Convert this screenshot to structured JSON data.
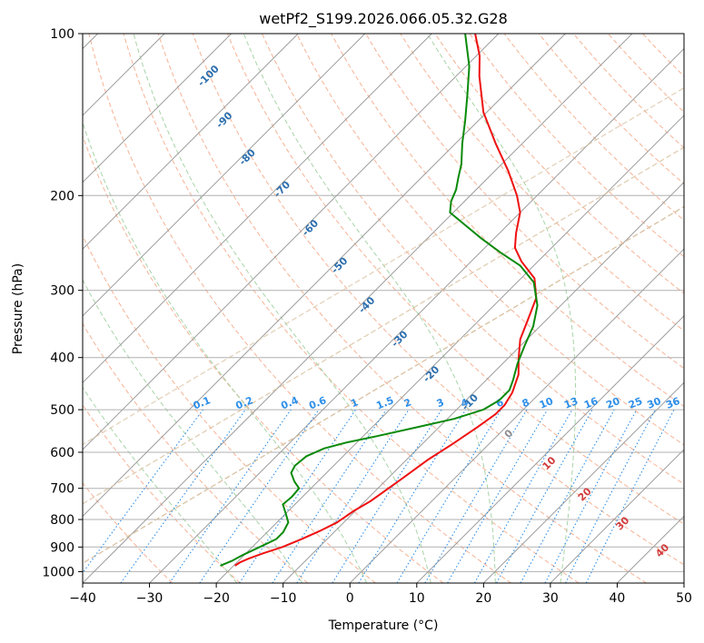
{
  "chart_data": {
    "type": "line",
    "title": "wetPf2_S199.2026.066.05.32.G28",
    "xlabel": "Temperature (°C)",
    "ylabel": "Pressure (hPa)",
    "xlim": [
      -40,
      50
    ],
    "ylim": [
      1050,
      100
    ],
    "x_ticks": [
      -40,
      -30,
      -20,
      -10,
      0,
      10,
      20,
      30,
      40,
      50
    ],
    "x_tick_labels": [
      "−40",
      "−30",
      "−20",
      "−10",
      "0",
      "10",
      "20",
      "30",
      "40",
      "50"
    ],
    "y_ticks": [
      100,
      200,
      300,
      400,
      500,
      600,
      700,
      800,
      900,
      1000
    ],
    "y_tick_labels": [
      "100",
      "200",
      "300",
      "400",
      "500",
      "600",
      "700",
      "800",
      "900",
      "1000"
    ],
    "skew_note": "skew-T log-p diagram",
    "colors": {
      "temperature": "#ee1111",
      "dewpoint": "#0a8a0a",
      "dry_adiabat": "#f4a582",
      "moist_adiabat": "#9fcf9f",
      "mixing_ratio": "#2e8fe8",
      "isotherm": "#8c8c8c",
      "theta_label": "#2c6fae",
      "hot_label": "#d23c3c",
      "cloud_curve": "#d9c0a0"
    },
    "series": [
      {
        "name": "temperature",
        "points": [
          {
            "p": 975,
            "t": -19.8
          },
          {
            "p": 960,
            "t": -19.5
          },
          {
            "p": 945,
            "t": -18.8
          },
          {
            "p": 925,
            "t": -17.5
          },
          {
            "p": 900,
            "t": -15.5
          },
          {
            "p": 870,
            "t": -13.8
          },
          {
            "p": 840,
            "t": -12.3
          },
          {
            "p": 810,
            "t": -11.0
          },
          {
            "p": 770,
            "t": -10.2
          },
          {
            "p": 740,
            "t": -9.2
          },
          {
            "p": 710,
            "t": -8.6
          },
          {
            "p": 670,
            "t": -7.8
          },
          {
            "p": 620,
            "t": -6.8
          },
          {
            "p": 580,
            "t": -5.5
          },
          {
            "p": 540,
            "t": -4.3
          },
          {
            "p": 510,
            "t": -3.5
          },
          {
            "p": 490,
            "t": -3.5
          },
          {
            "p": 465,
            "t": -4.2
          },
          {
            "p": 430,
            "t": -6.0
          },
          {
            "p": 400,
            "t": -8.5
          },
          {
            "p": 370,
            "t": -11.0
          },
          {
            "p": 340,
            "t": -12.8
          },
          {
            "p": 310,
            "t": -14.8
          },
          {
            "p": 285,
            "t": -18.0
          },
          {
            "p": 265,
            "t": -22.5
          },
          {
            "p": 250,
            "t": -25.5
          },
          {
            "p": 235,
            "t": -27.5
          },
          {
            "p": 215,
            "t": -30.0
          },
          {
            "p": 200,
            "t": -33.0
          },
          {
            "p": 180,
            "t": -38.0
          },
          {
            "p": 160,
            "t": -44.0
          },
          {
            "p": 140,
            "t": -50.5
          },
          {
            "p": 120,
            "t": -56.5
          },
          {
            "p": 110,
            "t": -59.5
          },
          {
            "p": 100,
            "t": -63.5
          }
        ]
      },
      {
        "name": "dewpoint",
        "points": [
          {
            "p": 975,
            "t": -22.0
          },
          {
            "p": 955,
            "t": -21.0
          },
          {
            "p": 930,
            "t": -20.2
          },
          {
            "p": 900,
            "t": -18.9
          },
          {
            "p": 870,
            "t": -17.6
          },
          {
            "p": 845,
            "t": -17.6
          },
          {
            "p": 810,
            "t": -18.3
          },
          {
            "p": 780,
            "t": -20.0
          },
          {
            "p": 750,
            "t": -21.8
          },
          {
            "p": 725,
            "t": -21.6
          },
          {
            "p": 700,
            "t": -21.8
          },
          {
            "p": 680,
            "t": -23.5
          },
          {
            "p": 655,
            "t": -25.3
          },
          {
            "p": 635,
            "t": -25.8
          },
          {
            "p": 610,
            "t": -25.5
          },
          {
            "p": 590,
            "t": -24.0
          },
          {
            "p": 575,
            "t": -21.5
          },
          {
            "p": 560,
            "t": -18.0
          },
          {
            "p": 540,
            "t": -13.5
          },
          {
            "p": 520,
            "t": -9.0
          },
          {
            "p": 500,
            "t": -6.0
          },
          {
            "p": 480,
            "t": -5.0
          },
          {
            "p": 460,
            "t": -5.0
          },
          {
            "p": 440,
            "t": -6.0
          },
          {
            "p": 410,
            "t": -7.8
          },
          {
            "p": 380,
            "t": -9.4
          },
          {
            "p": 350,
            "t": -11.0
          },
          {
            "p": 320,
            "t": -13.5
          },
          {
            "p": 290,
            "t": -17.5
          },
          {
            "p": 270,
            "t": -22.0
          },
          {
            "p": 255,
            "t": -27.0
          },
          {
            "p": 240,
            "t": -32.0
          },
          {
            "p": 225,
            "t": -37.0
          },
          {
            "p": 215,
            "t": -40.5
          },
          {
            "p": 205,
            "t": -42.0
          },
          {
            "p": 195,
            "t": -43.0
          },
          {
            "p": 185,
            "t": -44.5
          },
          {
            "p": 175,
            "t": -46.0
          },
          {
            "p": 160,
            "t": -49.0
          },
          {
            "p": 145,
            "t": -52.0
          },
          {
            "p": 130,
            "t": -55.5
          },
          {
            "p": 115,
            "t": -59.5
          },
          {
            "p": 100,
            "t": -65.0
          }
        ]
      }
    ],
    "dry_adiabats_theta_c": [
      -30,
      -20,
      -10,
      0,
      10,
      20,
      30,
      40,
      50,
      60,
      70,
      80,
      90,
      100,
      110,
      120,
      130,
      140,
      150,
      160,
      170,
      180
    ],
    "moist_adiabats_thetae_c": [
      -20,
      -10,
      0,
      10,
      20,
      30
    ],
    "mixing_ratio_lines": [
      "0.1",
      "0.2",
      "0.4",
      "0.6",
      "1",
      "1.5",
      "2",
      "3",
      "4",
      "6",
      "8",
      "10",
      "13",
      "16",
      "20",
      "25",
      "30",
      "36"
    ],
    "theta_labels": [
      "-100",
      "-90",
      "-80",
      "-70",
      "-60",
      "-50",
      "-40",
      "-30",
      "-20",
      "-10",
      "0",
      "10",
      "20",
      "30",
      "40"
    ]
  }
}
